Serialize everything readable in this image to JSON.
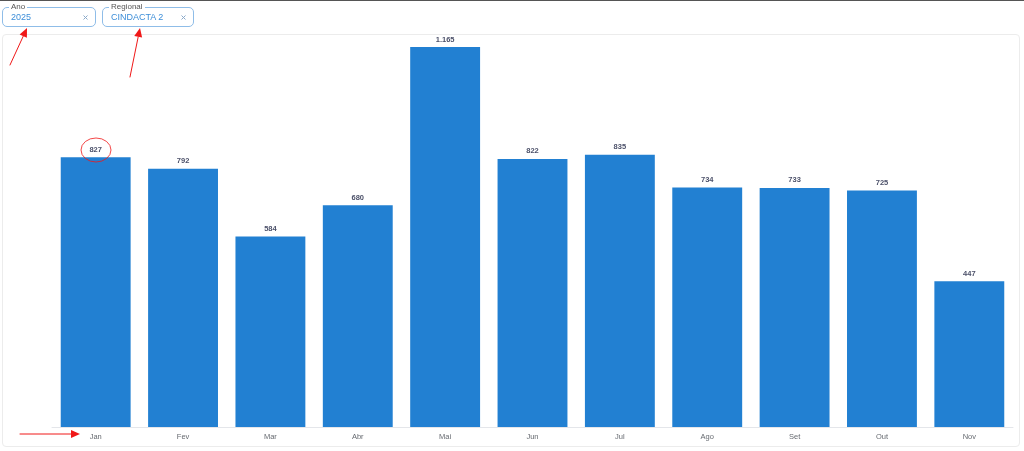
{
  "chart_data": {
    "type": "bar",
    "categories": [
      "Jan",
      "Fev",
      "Mar",
      "Abr",
      "Mai",
      "Jun",
      "Jul",
      "Ago",
      "Set",
      "Out",
      "Nov"
    ],
    "values": [
      827,
      792,
      584,
      680,
      1165,
      822,
      835,
      734,
      733,
      725,
      447
    ],
    "value_labels": [
      "827",
      "792",
      "584",
      "680",
      "1.165",
      "822",
      "835",
      "734",
      "733",
      "725",
      "447"
    ],
    "color": "#2280d2",
    "tick_labels": "x",
    "annotations": [
      "Ano",
      "2025",
      "Regional",
      "CINDACTA 2"
    ]
  }
}
